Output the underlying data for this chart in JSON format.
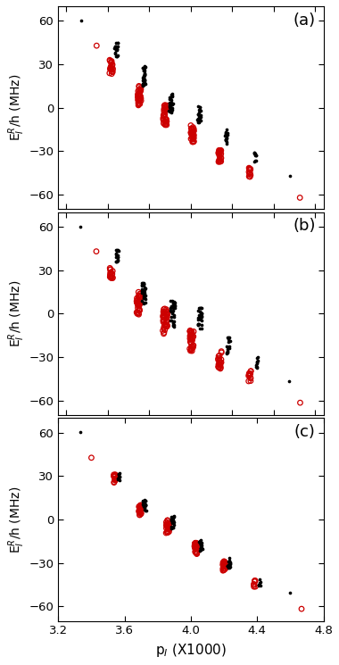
{
  "panels": [
    "(a)",
    "(b)",
    "(c)"
  ],
  "xlim": [
    3.2,
    4.8
  ],
  "ylim": [
    -70,
    70
  ],
  "yticks": [
    -60,
    -30,
    0,
    30,
    60
  ],
  "xticks": [
    3.2,
    3.6,
    4.0,
    4.4,
    4.8
  ],
  "xtick_labels": [
    "3.2",
    "3.6",
    "4.0",
    "4.4",
    "4.8"
  ],
  "xlabel": "p$_I$ (X1000)",
  "ylabel": "E$_I^R$/h (MHz)",
  "background_color": "#ffffff",
  "black_color": "#000000",
  "red_color": "#cc0000",
  "panel_a": {
    "groups": [
      {
        "xb": 3.335,
        "yb": 60.0,
        "nb": 1,
        "xr": 3.43,
        "yr": 43.0,
        "nr": 1,
        "sxb": 0.003,
        "syb": 0.5,
        "sxr": 0.003,
        "syr": 0.5
      },
      {
        "xb": 3.55,
        "yb": 40.0,
        "nb": 20,
        "xr": 3.52,
        "yr": 28.0,
        "nr": 20,
        "sxb": 0.01,
        "syb": 5.0,
        "sxr": 0.01,
        "syr": 5.0
      },
      {
        "xb": 3.715,
        "yb": 22.0,
        "nb": 35,
        "xr": 3.69,
        "yr": 8.0,
        "nr": 35,
        "sxb": 0.01,
        "syb": 7.0,
        "sxr": 0.01,
        "syr": 7.0
      },
      {
        "xb": 3.88,
        "yb": 3.0,
        "nb": 30,
        "xr": 3.845,
        "yr": -5.0,
        "nr": 35,
        "sxb": 0.012,
        "syb": 7.0,
        "sxr": 0.012,
        "syr": 7.0
      },
      {
        "xb": 4.05,
        "yb": -5.0,
        "nb": 25,
        "xr": 4.01,
        "yr": -18.0,
        "nr": 30,
        "sxb": 0.01,
        "syb": 6.0,
        "sxr": 0.01,
        "syr": 6.0
      },
      {
        "xb": 4.215,
        "yb": -20.0,
        "nb": 18,
        "xr": 4.175,
        "yr": -33.0,
        "nr": 22,
        "sxb": 0.009,
        "syb": 5.0,
        "sxr": 0.009,
        "syr": 5.0
      },
      {
        "xb": 4.39,
        "yb": -34.0,
        "nb": 10,
        "xr": 4.355,
        "yr": -44.0,
        "nr": 12,
        "sxb": 0.007,
        "syb": 4.0,
        "sxr": 0.007,
        "syr": 4.0
      },
      {
        "xb": 4.595,
        "yb": -47.0,
        "nb": 1,
        "xr": 4.66,
        "yr": -62.0,
        "nr": 1,
        "sxb": 0.003,
        "syb": 0.5,
        "sxr": 0.003,
        "syr": 0.5
      }
    ]
  },
  "panel_b": {
    "groups": [
      {
        "xb": 3.335,
        "yb": 60.0,
        "nb": 1,
        "xr": 3.43,
        "yr": 43.0,
        "nr": 1,
        "sxb": 0.003,
        "syb": 0.5,
        "sxr": 0.003,
        "syr": 0.5
      },
      {
        "xb": 3.555,
        "yb": 40.0,
        "nb": 18,
        "xr": 3.52,
        "yr": 28.0,
        "nr": 18,
        "sxb": 0.009,
        "syb": 4.5,
        "sxr": 0.009,
        "syr": 4.5
      },
      {
        "xb": 3.715,
        "yb": 14.0,
        "nb": 30,
        "xr": 3.685,
        "yr": 7.0,
        "nr": 35,
        "sxb": 0.012,
        "syb": 8.0,
        "sxr": 0.012,
        "syr": 8.0
      },
      {
        "xb": 3.89,
        "yb": 0.0,
        "nb": 35,
        "xr": 3.845,
        "yr": -5.0,
        "nr": 40,
        "sxb": 0.014,
        "syb": 9.0,
        "sxr": 0.014,
        "syr": 9.0
      },
      {
        "xb": 4.055,
        "yb": -3.0,
        "nb": 28,
        "xr": 4.005,
        "yr": -18.0,
        "nr": 35,
        "sxb": 0.012,
        "syb": 8.0,
        "sxr": 0.012,
        "syr": 8.0
      },
      {
        "xb": 4.225,
        "yb": -22.0,
        "nb": 18,
        "xr": 4.175,
        "yr": -32.0,
        "nr": 22,
        "sxb": 0.01,
        "syb": 6.0,
        "sxr": 0.01,
        "syr": 6.0
      },
      {
        "xb": 4.4,
        "yb": -34.0,
        "nb": 10,
        "xr": 4.355,
        "yr": -43.0,
        "nr": 12,
        "sxb": 0.008,
        "syb": 4.0,
        "sxr": 0.008,
        "syr": 4.0
      },
      {
        "xb": 4.595,
        "yb": -47.0,
        "nb": 1,
        "xr": 4.66,
        "yr": -62.0,
        "nr": 1,
        "sxb": 0.003,
        "syb": 0.5,
        "sxr": 0.003,
        "syr": 0.5
      }
    ]
  },
  "panel_c": {
    "groups": [
      {
        "xb": 3.335,
        "yb": 60.0,
        "nb": 1,
        "xr": 3.4,
        "yr": 43.0,
        "nr": 1,
        "sxb": 0.003,
        "syb": 0.5,
        "sxr": 0.003,
        "syr": 0.5
      },
      {
        "xb": 3.565,
        "yb": 30.0,
        "nb": 12,
        "xr": 3.54,
        "yr": 28.5,
        "nr": 14,
        "sxb": 0.007,
        "syb": 3.0,
        "sxr": 0.007,
        "syr": 3.0
      },
      {
        "xb": 3.72,
        "yb": 10.0,
        "nb": 20,
        "xr": 3.695,
        "yr": 7.0,
        "nr": 22,
        "sxb": 0.009,
        "syb": 4.0,
        "sxr": 0.009,
        "syr": 4.0
      },
      {
        "xb": 3.89,
        "yb": -2.0,
        "nb": 25,
        "xr": 3.86,
        "yr": -5.0,
        "nr": 28,
        "sxb": 0.01,
        "syb": 4.5,
        "sxr": 0.01,
        "syr": 4.5
      },
      {
        "xb": 4.06,
        "yb": -18.0,
        "nb": 22,
        "xr": 4.03,
        "yr": -20.0,
        "nr": 25,
        "sxb": 0.009,
        "syb": 4.0,
        "sxr": 0.009,
        "syr": 4.0
      },
      {
        "xb": 4.23,
        "yb": -30.0,
        "nb": 16,
        "xr": 4.2,
        "yr": -32.0,
        "nr": 18,
        "sxb": 0.008,
        "syb": 3.5,
        "sxr": 0.008,
        "syr": 3.5
      },
      {
        "xb": 4.415,
        "yb": -43.0,
        "nb": 6,
        "xr": 4.385,
        "yr": -44.5,
        "nr": 8,
        "sxb": 0.006,
        "syb": 2.5,
        "sxr": 0.006,
        "syr": 2.5
      },
      {
        "xb": 4.595,
        "yb": -50.0,
        "nb": 1,
        "xr": 4.665,
        "yr": -62.0,
        "nr": 1,
        "sxb": 0.003,
        "syb": 0.5,
        "sxr": 0.003,
        "syr": 0.5
      }
    ]
  }
}
